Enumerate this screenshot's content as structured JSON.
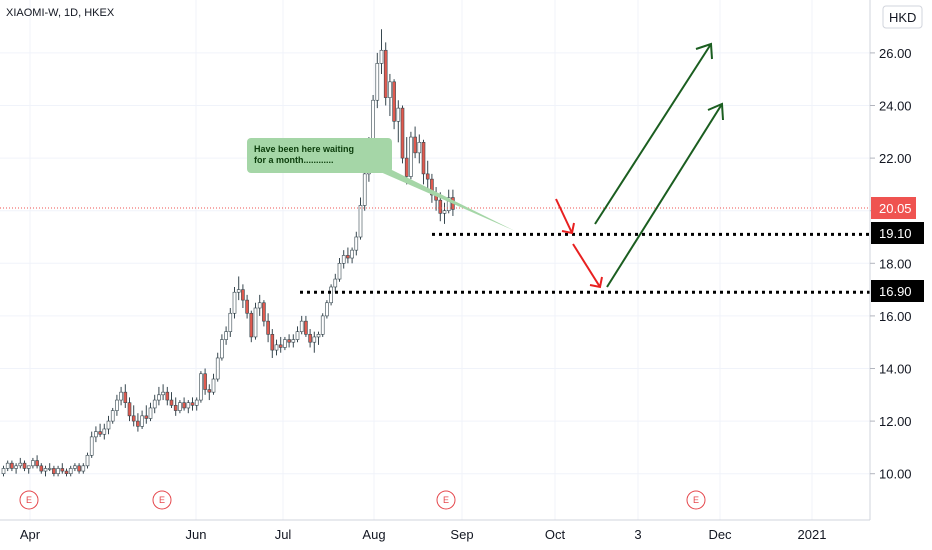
{
  "header": {
    "symbol": "XIAOMI-W, 1D, HKEX"
  },
  "currency": "HKD",
  "colors": {
    "up": "#ffffff",
    "up_border": "#37474f",
    "down": "#e05a4f",
    "down_border": "#37474f",
    "current_price": "#ef5350",
    "level_tag": "#000000",
    "arrow_red": "#e82020",
    "arrow_green": "#1b5e20",
    "callout_bg": "#a5d6a7"
  },
  "callout": {
    "lines": [
      "Have been here waiting",
      "for a month............"
    ]
  },
  "price_tags": {
    "current": "20.05",
    "level_1": "19.10",
    "level_2": "16.90"
  },
  "earnings_marker": "E",
  "chart_data": {
    "type": "candlestick",
    "y_axis": {
      "ticks": [
        "10.00",
        "12.00",
        "14.00",
        "16.00",
        "18.00",
        "20.00",
        "22.00",
        "24.00",
        "26.00"
      ],
      "range": [
        8.5,
        27
      ]
    },
    "x_axis": {
      "labels": [
        "Apr",
        "Jun",
        "Jul",
        "Aug",
        "Sep",
        "Oct",
        "3",
        "Dec",
        "2021"
      ]
    },
    "current_price": 20.05,
    "horizontal_levels": [
      19.1,
      16.9
    ],
    "ohlc": [
      [
        10.0,
        10.3,
        9.9,
        10.2
      ],
      [
        10.2,
        10.5,
        10.1,
        10.4
      ],
      [
        10.4,
        10.5,
        10.1,
        10.2
      ],
      [
        10.2,
        10.4,
        10.0,
        10.3
      ],
      [
        10.3,
        10.6,
        10.2,
        10.4
      ],
      [
        10.4,
        10.5,
        10.1,
        10.2
      ],
      [
        10.2,
        10.3,
        10.0,
        10.3
      ],
      [
        10.3,
        10.6,
        10.2,
        10.5
      ],
      [
        10.5,
        10.7,
        10.2,
        10.3
      ],
      [
        10.3,
        10.4,
        10.0,
        10.1
      ],
      [
        10.1,
        10.3,
        9.9,
        10.2
      ],
      [
        10.2,
        10.4,
        10.1,
        10.2
      ],
      [
        10.2,
        10.3,
        9.9,
        10.0
      ],
      [
        10.0,
        10.3,
        9.9,
        10.2
      ],
      [
        10.2,
        10.4,
        10.0,
        10.1
      ],
      [
        10.1,
        10.2,
        9.9,
        10.0
      ],
      [
        10.0,
        10.3,
        9.9,
        10.2
      ],
      [
        10.2,
        10.4,
        10.1,
        10.3
      ],
      [
        10.3,
        10.4,
        10.0,
        10.1
      ],
      [
        10.1,
        10.4,
        10.0,
        10.3
      ],
      [
        10.3,
        10.8,
        10.2,
        10.7
      ],
      [
        10.7,
        11.6,
        10.6,
        11.4
      ],
      [
        11.4,
        11.8,
        11.2,
        11.6
      ],
      [
        11.6,
        11.9,
        11.4,
        11.5
      ],
      [
        11.5,
        11.9,
        11.3,
        11.7
      ],
      [
        11.7,
        12.2,
        11.5,
        12.0
      ],
      [
        12.0,
        12.5,
        11.9,
        12.4
      ],
      [
        12.4,
        13.0,
        12.2,
        12.8
      ],
      [
        12.8,
        13.3,
        12.6,
        13.1
      ],
      [
        13.1,
        13.4,
        12.5,
        12.7
      ],
      [
        12.7,
        12.9,
        12.0,
        12.2
      ],
      [
        12.2,
        12.6,
        11.8,
        12.0
      ],
      [
        12.0,
        12.3,
        11.6,
        11.8
      ],
      [
        11.8,
        12.4,
        11.7,
        12.2
      ],
      [
        12.2,
        12.6,
        11.9,
        12.1
      ],
      [
        12.1,
        12.7,
        12.0,
        12.5
      ],
      [
        12.5,
        13.0,
        12.3,
        12.8
      ],
      [
        12.8,
        13.3,
        12.6,
        13.0
      ],
      [
        13.0,
        13.4,
        12.8,
        13.1
      ],
      [
        13.1,
        13.3,
        12.6,
        12.8
      ],
      [
        12.8,
        13.1,
        12.5,
        12.6
      ],
      [
        12.6,
        12.9,
        12.2,
        12.4
      ],
      [
        12.4,
        12.8,
        12.3,
        12.7
      ],
      [
        12.7,
        12.9,
        12.4,
        12.5
      ],
      [
        12.5,
        12.8,
        12.3,
        12.7
      ],
      [
        12.7,
        12.9,
        12.4,
        12.6
      ],
      [
        12.6,
        12.9,
        12.4,
        12.8
      ],
      [
        12.8,
        13.9,
        12.7,
        13.8
      ],
      [
        13.8,
        14.0,
        13.0,
        13.2
      ],
      [
        13.2,
        13.4,
        12.8,
        13.1
      ],
      [
        13.1,
        13.8,
        13.0,
        13.6
      ],
      [
        13.6,
        14.6,
        13.5,
        14.4
      ],
      [
        14.4,
        15.3,
        14.3,
        15.1
      ],
      [
        15.1,
        15.6,
        14.9,
        15.4
      ],
      [
        15.4,
        16.3,
        15.2,
        16.1
      ],
      [
        16.1,
        17.1,
        15.9,
        16.9
      ],
      [
        16.9,
        17.5,
        16.6,
        17.0
      ],
      [
        17.0,
        17.2,
        16.3,
        16.6
      ],
      [
        16.6,
        16.8,
        15.9,
        16.1
      ],
      [
        16.1,
        16.2,
        15.0,
        15.2
      ],
      [
        15.2,
        16.5,
        15.1,
        16.3
      ],
      [
        16.3,
        16.8,
        16.0,
        16.5
      ],
      [
        16.5,
        16.6,
        15.6,
        15.8
      ],
      [
        15.8,
        16.1,
        15.0,
        15.3
      ],
      [
        15.3,
        15.5,
        14.4,
        14.7
      ],
      [
        14.7,
        15.1,
        14.5,
        14.9
      ],
      [
        14.9,
        15.2,
        14.6,
        14.8
      ],
      [
        14.8,
        15.2,
        14.7,
        15.1
      ],
      [
        15.1,
        15.3,
        14.8,
        15.0
      ],
      [
        15.0,
        15.3,
        14.8,
        15.1
      ],
      [
        15.1,
        15.6,
        15.0,
        15.4
      ],
      [
        15.4,
        16.0,
        15.3,
        15.8
      ],
      [
        15.8,
        16.0,
        15.2,
        15.3
      ],
      [
        15.3,
        15.5,
        14.8,
        15.0
      ],
      [
        15.0,
        15.4,
        14.6,
        15.2
      ],
      [
        15.2,
        15.4,
        14.9,
        15.3
      ],
      [
        15.3,
        16.1,
        15.2,
        16.0
      ],
      [
        16.0,
        16.6,
        15.9,
        16.5
      ],
      [
        16.5,
        17.2,
        16.4,
        17.1
      ],
      [
        17.1,
        17.6,
        16.9,
        17.4
      ],
      [
        17.4,
        18.2,
        17.3,
        18.0
      ],
      [
        18.0,
        18.5,
        17.8,
        18.3
      ],
      [
        18.3,
        18.6,
        18.0,
        18.2
      ],
      [
        18.2,
        18.6,
        18.0,
        18.5
      ],
      [
        18.5,
        19.2,
        18.3,
        19.0
      ],
      [
        19.0,
        20.5,
        18.9,
        20.2
      ],
      [
        20.2,
        21.6,
        20.0,
        21.4
      ],
      [
        21.4,
        22.8,
        21.1,
        22.5
      ],
      [
        22.5,
        24.4,
        22.3,
        24.2
      ],
      [
        24.2,
        26.0,
        23.9,
        25.6
      ],
      [
        25.6,
        26.9,
        25.2,
        26.1
      ],
      [
        26.1,
        26.4,
        24.0,
        24.3
      ],
      [
        24.3,
        25.2,
        23.6,
        24.9
      ],
      [
        24.9,
        25.0,
        23.1,
        23.4
      ],
      [
        23.4,
        24.2,
        22.6,
        23.9
      ],
      [
        23.9,
        24.0,
        21.8,
        22.0
      ],
      [
        22.0,
        22.8,
        21.0,
        21.3
      ],
      [
        21.3,
        23.0,
        21.2,
        22.8
      ],
      [
        22.8,
        23.2,
        22.0,
        22.2
      ],
      [
        22.2,
        22.9,
        21.8,
        22.6
      ],
      [
        22.6,
        22.7,
        21.0,
        21.4
      ],
      [
        21.4,
        21.9,
        20.8,
        21.2
      ],
      [
        21.2,
        21.4,
        20.3,
        20.6
      ],
      [
        20.6,
        20.9,
        20.0,
        20.4
      ],
      [
        20.4,
        20.7,
        19.6,
        19.9
      ],
      [
        19.9,
        20.3,
        19.5,
        20.0
      ],
      [
        20.0,
        20.8,
        19.9,
        20.5
      ],
      [
        20.5,
        20.8,
        19.8,
        20.05
      ]
    ]
  }
}
